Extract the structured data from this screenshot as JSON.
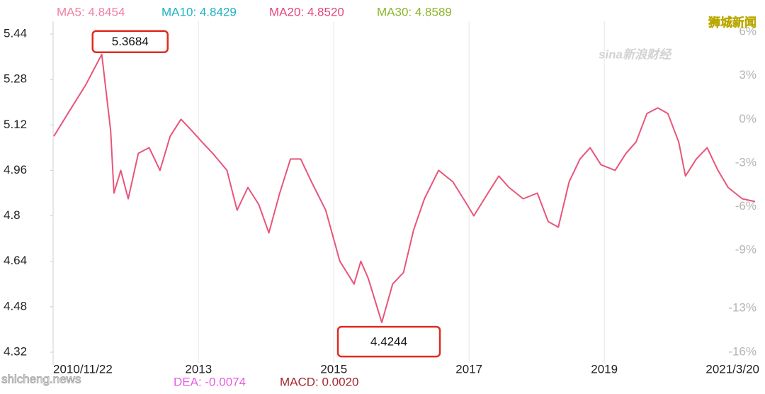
{
  "chart_data": {
    "type": "line",
    "legend": [
      {
        "text": "MA5: 4.8454",
        "color": "#f27ea0"
      },
      {
        "text": "MA10: 4.8429",
        "color": "#1db3c6"
      },
      {
        "text": "MA20: 4.8520",
        "color": "#e6457b"
      },
      {
        "text": "MA30: 4.8589",
        "color": "#8db52a"
      }
    ],
    "lower_legend": [
      {
        "text": "DEA: -0.0074",
        "color": "#e45de0"
      },
      {
        "text": "MACD: 0.0020",
        "color": "#a3262c"
      }
    ],
    "watermarks": [
      "狮城新闻",
      "sina新浪财经",
      "shicheng.news"
    ],
    "x": [
      2010.86,
      2011.12,
      2011.33,
      2011.57,
      2011.7,
      2011.75,
      2011.85,
      2011.96,
      2012.11,
      2012.27,
      2012.43,
      2012.58,
      2012.74,
      2012.9,
      2013.05,
      2013.21,
      2013.42,
      2013.57,
      2013.73,
      2013.89,
      2014.04,
      2014.2,
      2014.36,
      2014.51,
      2014.67,
      2014.88,
      2015.09,
      2015.3,
      2015.4,
      2015.51,
      2015.71,
      2015.87,
      2016.03,
      2016.18,
      2016.34,
      2016.55,
      2016.76,
      2016.97,
      2017.07,
      2017.28,
      2017.44,
      2017.59,
      2017.8,
      2018.01,
      2018.17,
      2018.32,
      2018.48,
      2018.64,
      2018.79,
      2018.95,
      2019.16,
      2019.32,
      2019.47,
      2019.63,
      2019.79,
      2019.94,
      2020.1,
      2020.2,
      2020.36,
      2020.52,
      2020.68,
      2020.83,
      2021.04,
      2021.23
    ],
    "values": [
      5.08,
      5.18,
      5.26,
      5.3684,
      5.1,
      4.88,
      4.96,
      4.86,
      5.02,
      5.04,
      4.96,
      5.08,
      5.14,
      5.1,
      5.06,
      5.02,
      4.96,
      4.82,
      4.9,
      4.84,
      4.74,
      4.88,
      5.0,
      5.0,
      4.92,
      4.82,
      4.64,
      4.56,
      4.64,
      4.58,
      4.4244,
      4.56,
      4.6,
      4.75,
      4.86,
      4.96,
      4.92,
      4.84,
      4.8,
      4.88,
      4.94,
      4.9,
      4.86,
      4.88,
      4.78,
      4.76,
      4.92,
      5.0,
      5.04,
      4.98,
      4.96,
      5.02,
      5.06,
      5.16,
      5.18,
      5.16,
      5.06,
      4.94,
      5.0,
      5.04,
      4.96,
      4.9,
      4.86,
      4.85
    ],
    "color": "#e8557a",
    "highlight": [
      "max",
      "min"
    ],
    "xlim": [
      2010.85,
      2021.25
    ],
    "xticks": [
      {
        "value": 2010.89,
        "label": "2010/11/22"
      },
      2013,
      2015,
      2017,
      2019,
      {
        "value": 2021.22,
        "label": "2021/3/20"
      }
    ],
    "ylim": [
      4.3,
      5.46
    ],
    "yticks": [
      4.32,
      4.48,
      4.64,
      4.8,
      4.96,
      5.12,
      5.28,
      5.44
    ],
    "y2lim": [
      -16.4,
      6.25
    ],
    "y2ticks": [
      {
        "value": 6,
        "label": "6%"
      },
      {
        "value": 3,
        "label": "3%"
      },
      {
        "value": 0,
        "label": "0%"
      },
      {
        "value": -3,
        "label": "-3%"
      },
      {
        "value": -6,
        "label": "-6%"
      },
      {
        "value": -9,
        "label": "-9%"
      },
      {
        "value": -13,
        "label": "-13%"
      },
      {
        "value": -16,
        "label": "-16%"
      }
    ],
    "grid": "x"
  }
}
